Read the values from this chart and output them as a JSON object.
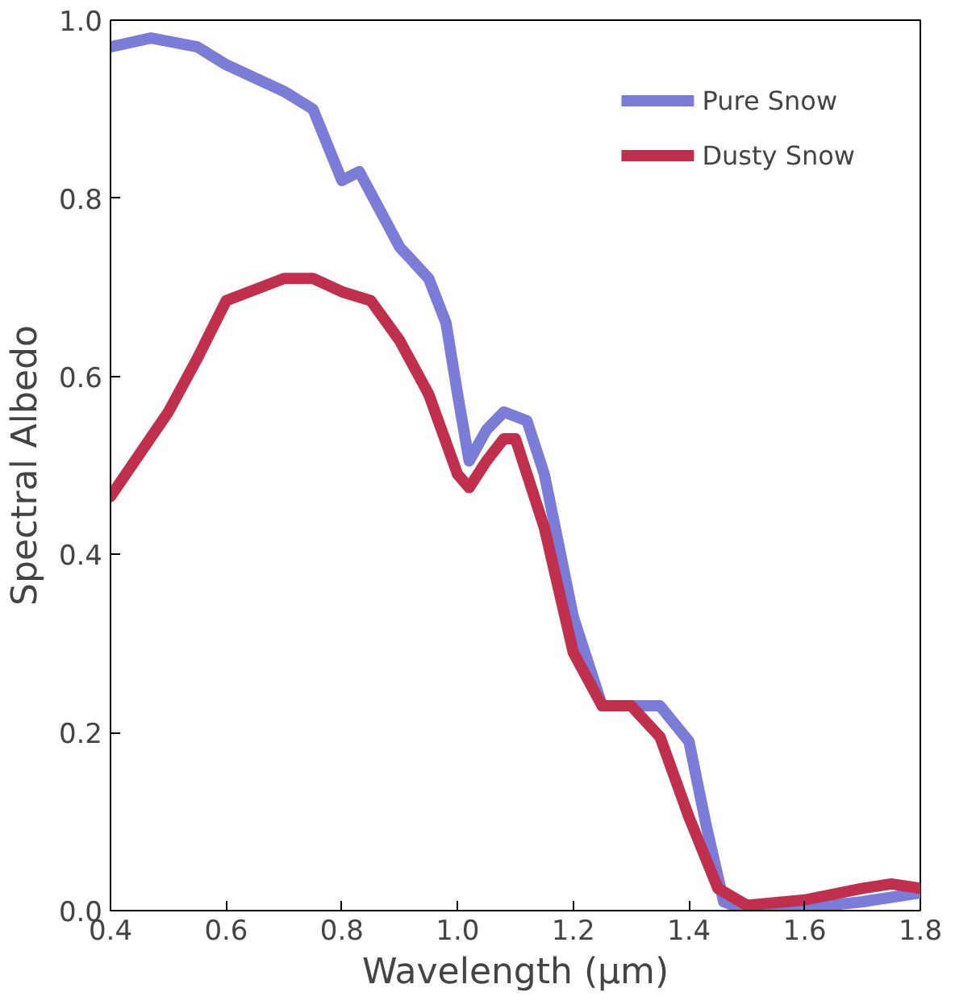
{
  "chart_data": {
    "type": "line",
    "xlabel": "Wavelength (μm)",
    "ylabel": "Spectral Albedo",
    "xlim": [
      0.4,
      1.8
    ],
    "ylim": [
      0,
      1.0
    ],
    "xticks": [
      {
        "value": 0.4,
        "label": "0.4"
      },
      {
        "value": 0.6,
        "label": "0.6"
      },
      {
        "value": 0.8,
        "label": "0.8"
      },
      {
        "value": 1.0,
        "label": "1.0"
      },
      {
        "value": 1.2,
        "label": "1.2"
      },
      {
        "value": 1.4,
        "label": "1.4"
      },
      {
        "value": 1.6,
        "label": "1.6"
      },
      {
        "value": 1.8,
        "label": "1.8"
      }
    ],
    "yticks": [
      {
        "value": 0,
        "label": "0.0"
      },
      {
        "value": 0.2,
        "label": "0.2"
      },
      {
        "value": 0.4,
        "label": "0.4"
      },
      {
        "value": 0.6,
        "label": "0.6"
      },
      {
        "value": 0.8,
        "label": "0.8"
      },
      {
        "value": 1.0,
        "label": "1.0"
      }
    ],
    "grid": false,
    "legend": "top right",
    "line_style": "solid",
    "series": [
      {
        "name": "Pure Snow",
        "color": "#7b7bd8",
        "x": [
          0.4,
          0.47,
          0.55,
          0.6,
          0.7,
          0.75,
          0.8,
          0.83,
          0.9,
          0.95,
          0.98,
          1.0,
          1.02,
          1.05,
          1.08,
          1.12,
          1.15,
          1.2,
          1.25,
          1.3,
          1.35,
          1.4,
          1.43,
          1.46,
          1.5,
          1.6,
          1.7,
          1.8
        ],
        "values": [
          0.97,
          0.98,
          0.97,
          0.95,
          0.92,
          0.9,
          0.82,
          0.83,
          0.745,
          0.71,
          0.66,
          0.58,
          0.505,
          0.54,
          0.56,
          0.55,
          0.49,
          0.33,
          0.23,
          0.23,
          0.23,
          0.19,
          0.095,
          0.01,
          0.0,
          0.003,
          0.01,
          0.02
        ]
      },
      {
        "name": "Dusty Snow",
        "color": "#c0304c",
        "x": [
          0.4,
          0.5,
          0.55,
          0.6,
          0.7,
          0.75,
          0.8,
          0.85,
          0.9,
          0.95,
          1.0,
          1.02,
          1.05,
          1.08,
          1.1,
          1.15,
          1.2,
          1.25,
          1.3,
          1.35,
          1.4,
          1.45,
          1.5,
          1.6,
          1.7,
          1.75,
          1.8
        ],
        "values": [
          0.465,
          0.56,
          0.62,
          0.685,
          0.71,
          0.71,
          0.695,
          0.685,
          0.64,
          0.58,
          0.49,
          0.475,
          0.505,
          0.53,
          0.53,
          0.43,
          0.29,
          0.23,
          0.23,
          0.195,
          0.105,
          0.025,
          0.006,
          0.012,
          0.025,
          0.03,
          0.025
        ]
      }
    ]
  }
}
